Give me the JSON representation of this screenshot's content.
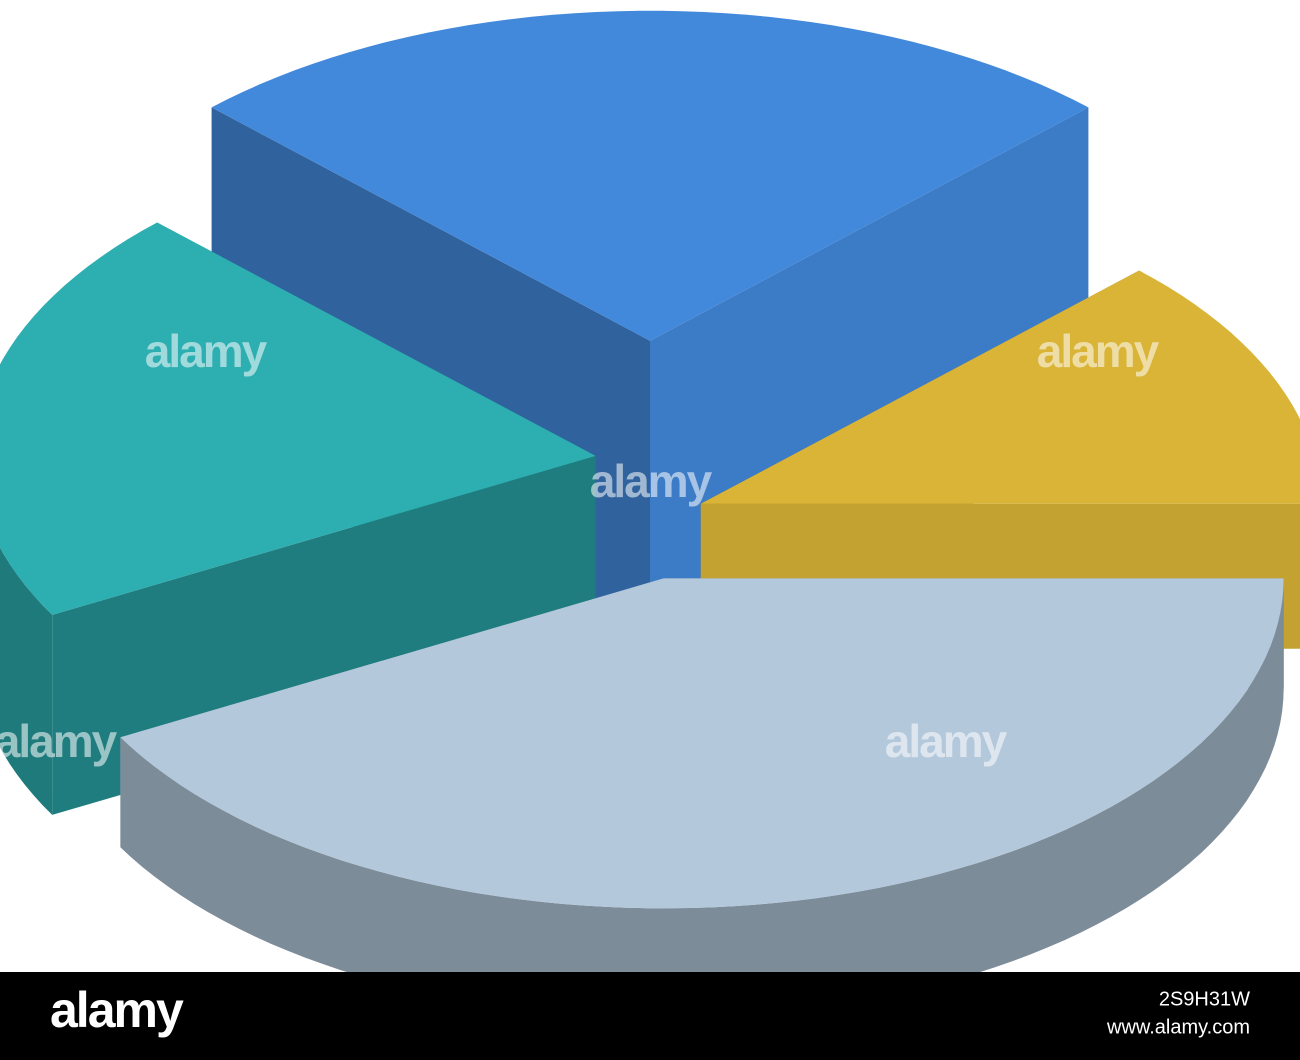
{
  "chart_data": {
    "type": "pie",
    "categories": [
      "blue",
      "gold",
      "gray",
      "teal"
    ],
    "values": [
      25,
      12.5,
      42,
      20.5
    ],
    "colors": [
      "#4389db",
      "#d9b437",
      "#b3c8db",
      "#2daeb1"
    ]
  },
  "watermark": {
    "text": "alamy",
    "image_id": "2S9H31W",
    "site": "www.alamy.com"
  }
}
